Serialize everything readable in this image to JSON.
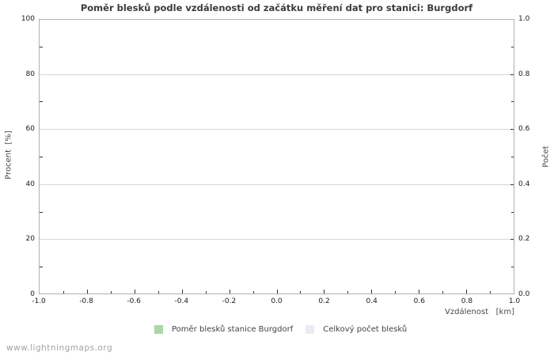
{
  "chart_data": {
    "type": "bar",
    "title": "Poměr blesků podle vzdálenosti od začátku měření dat pro stanici: Burgdorf",
    "x_axis": {
      "label": "Vzdálenost   [km]",
      "min": -1.0,
      "max": 1.0,
      "tick_step": 0.2,
      "minor_tick_step": 0.1,
      "tick_labels": [
        "-1.0",
        "-0.8",
        "-0.6",
        "-0.4",
        "-0.2",
        "0.0",
        "0.2",
        "0.4",
        "0.6",
        "0.8",
        "1.0"
      ]
    },
    "y_axis_left": {
      "label": "Procent  [%]",
      "min": 0,
      "max": 100,
      "tick_step": 20,
      "minor_tick_step": 10,
      "tick_labels": [
        "0",
        "20",
        "40",
        "60",
        "80",
        "100"
      ]
    },
    "y_axis_right": {
      "label": "Počet",
      "min": 0.0,
      "max": 1.0,
      "tick_step": 0.2,
      "minor_tick_step": 0.1,
      "tick_labels": [
        "0.0",
        "0.2",
        "0.4",
        "0.6",
        "0.8",
        "1.0"
      ]
    },
    "grid": {
      "horizontal": true,
      "vertical": false,
      "color": "#d5d5d5"
    },
    "axis_border_color": "#b0b0b0",
    "tick_color": "#333333",
    "series": [
      {
        "name": "Poměr blesků stanice Burgdorf",
        "color": "#abd7a6",
        "values": []
      },
      {
        "name": "Celkový počet blesků",
        "color": "#eaebf7",
        "values": []
      }
    ]
  },
  "watermark": "www.lightningmaps.org"
}
